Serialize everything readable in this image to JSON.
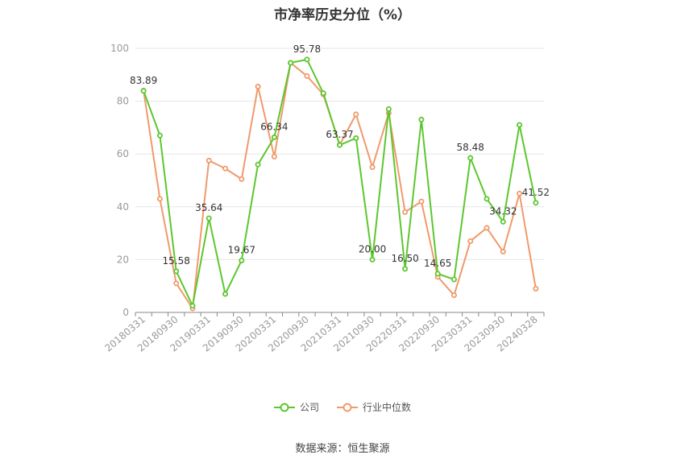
{
  "chart_data": {
    "type": "line",
    "title": "市净率历史分位（%）",
    "x_ticks": [
      "20180331",
      "20180930",
      "20190331",
      "20190930",
      "20200331",
      "20200930",
      "20210331",
      "20210930",
      "20220331",
      "20220930",
      "20230331",
      "20230930",
      "20240328"
    ],
    "ylim": [
      0,
      100
    ],
    "y_ticks": [
      0,
      20,
      40,
      60,
      80,
      100
    ],
    "grid": true,
    "legend_position": "bottom",
    "series": [
      {
        "name": "公司",
        "color": "#5cc72f",
        "values": [
          83.89,
          67,
          15.58,
          2.5,
          35.64,
          7,
          19.67,
          56,
          66.34,
          94.5,
          95.78,
          83,
          63.37,
          66,
          20.0,
          77,
          16.5,
          73,
          14.65,
          12.5,
          58.48,
          43,
          34.32,
          71,
          41.52
        ]
      },
      {
        "name": "行业中位数",
        "color": "#f09a6c",
        "values": [
          84,
          43,
          11,
          1.5,
          57.5,
          54.5,
          50.5,
          85.5,
          59,
          94.5,
          89.5,
          82.5,
          63.5,
          75,
          55,
          75.5,
          38,
          42,
          13.5,
          6.5,
          27,
          32,
          23,
          45,
          9
        ]
      }
    ],
    "data_labels": [
      {
        "index": 0,
        "text": "83.89"
      },
      {
        "index": 2,
        "text": "15.58"
      },
      {
        "index": 4,
        "text": "35.64"
      },
      {
        "index": 6,
        "text": "19.67"
      },
      {
        "index": 8,
        "text": "66.34"
      },
      {
        "index": 10,
        "text": "95.78"
      },
      {
        "index": 12,
        "text": "63.37"
      },
      {
        "index": 14,
        "text": "20.00"
      },
      {
        "index": 16,
        "text": "16.50"
      },
      {
        "index": 18,
        "text": "14.65"
      },
      {
        "index": 20,
        "text": "58.48"
      },
      {
        "index": 22,
        "text": "34.32"
      },
      {
        "index": 24,
        "text": "41.52"
      }
    ]
  },
  "legend": {
    "company": "公司",
    "industry": "行业中位数"
  },
  "source": "数据来源：恒生聚源"
}
